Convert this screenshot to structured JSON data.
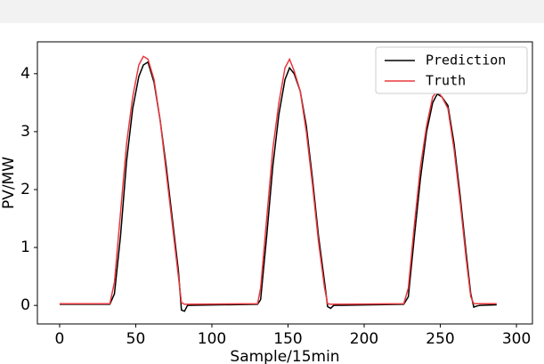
{
  "chart_data": {
    "type": "line",
    "xlabel": "Sample/15min",
    "ylabel": "PV/MW",
    "x": [
      0,
      33,
      36,
      40,
      44,
      48,
      52,
      55,
      58,
      62,
      66,
      70,
      74,
      78,
      80,
      82,
      84,
      130,
      132,
      136,
      140,
      144,
      148,
      151,
      154,
      158,
      162,
      166,
      170,
      174,
      176,
      178,
      180,
      226,
      229,
      233,
      237,
      241,
      245,
      248,
      251,
      255,
      259,
      263,
      267,
      270,
      272,
      274,
      276,
      287
    ],
    "series": [
      {
        "name": "Prediction",
        "color": "#000000",
        "values": [
          0.02,
          0.02,
          0.2,
          1.2,
          2.5,
          3.4,
          3.95,
          4.15,
          4.2,
          3.85,
          3.2,
          2.4,
          1.5,
          0.6,
          -0.08,
          -0.1,
          0.0,
          0.02,
          0.1,
          1.2,
          2.4,
          3.3,
          3.9,
          4.1,
          4.0,
          3.7,
          3.1,
          2.2,
          1.2,
          0.4,
          -0.02,
          -0.05,
          0.0,
          0.02,
          0.15,
          1.2,
          2.2,
          3.0,
          3.5,
          3.65,
          3.6,
          3.45,
          2.8,
          1.9,
          0.9,
          0.2,
          -0.03,
          -0.01,
          0.0,
          0.01
        ]
      },
      {
        "name": "Truth",
        "color": "#e8383d",
        "values": [
          0.03,
          0.03,
          0.4,
          1.6,
          2.8,
          3.6,
          4.15,
          4.3,
          4.25,
          3.9,
          3.2,
          2.3,
          1.4,
          0.5,
          0.05,
          0.02,
          0.02,
          0.03,
          0.3,
          1.5,
          2.7,
          3.5,
          4.1,
          4.25,
          4.05,
          3.7,
          3.0,
          2.1,
          1.1,
          0.3,
          0.03,
          0.02,
          0.02,
          0.03,
          0.3,
          1.4,
          2.4,
          3.1,
          3.6,
          3.7,
          3.6,
          3.4,
          2.7,
          1.8,
          0.8,
          0.15,
          0.03,
          0.03,
          0.03,
          0.03
        ]
      }
    ],
    "xlim": [
      -14.6,
      310.5
    ],
    "xticks": [
      0,
      50,
      100,
      150,
      200,
      250,
      300
    ],
    "ylim": [
      -0.32,
      4.55
    ],
    "yticks": [
      0,
      1,
      2,
      3,
      4
    ],
    "legend": "upper right"
  }
}
